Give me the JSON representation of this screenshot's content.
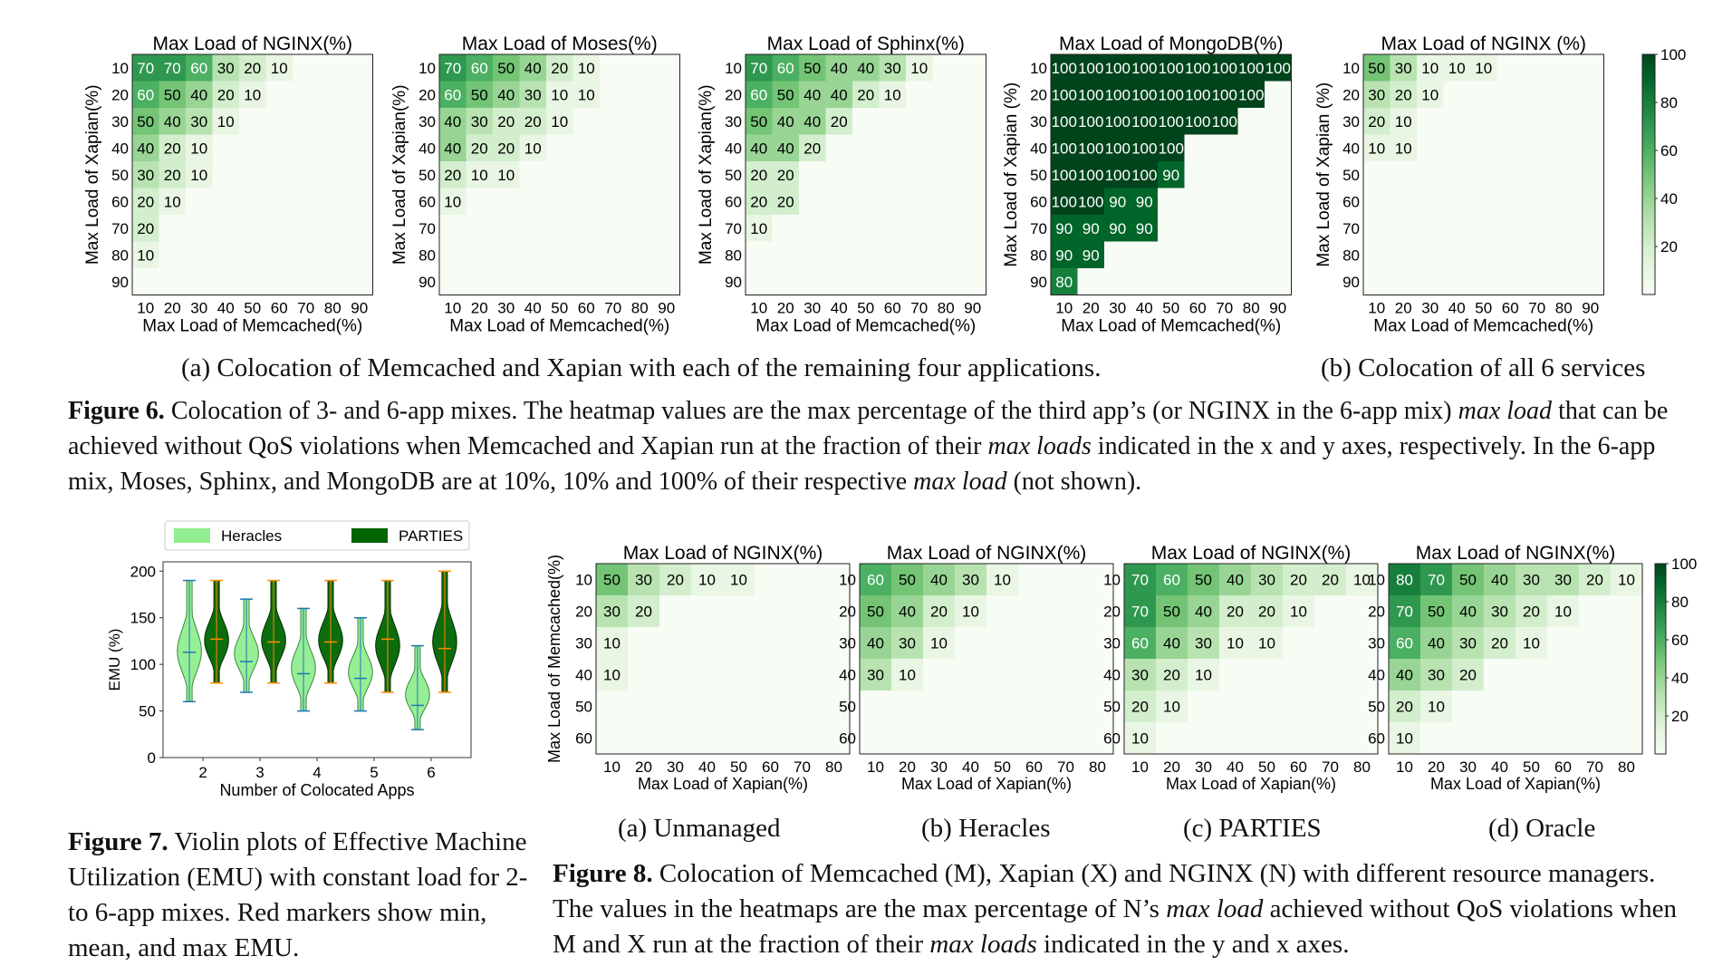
{
  "figure6": {
    "label": "Figure 6.",
    "caption": [
      {
        "t": " Colocation of 3- and 6-app mixes. The heatmap values are the max percentage of the third app’s (or NGINX in the 6-app mix) ",
        "i": false
      },
      {
        "t": "max load",
        "i": true
      },
      {
        "t": " that can be achieved without QoS violations when Memcached and Xapian run at the fraction of their ",
        "i": false
      },
      {
        "t": "max loads",
        "i": true
      },
      {
        "t": " indicated in the x and y axes, respectively. In the 6-app mix, Moses, Sphinx, and MongoDB are at 10%, 10% and 100% of their respective ",
        "i": false
      },
      {
        "t": "max load",
        "i": true
      },
      {
        "t": " (not shown).",
        "i": false
      }
    ],
    "subcaption_a": "(a) Colocation of Memcached and Xapian with each of the remaining four applications.",
    "subcaption_b": "(b) Colocation of all 6 services"
  },
  "figure7": {
    "label": "Figure 7.",
    "caption": [
      {
        "t": " Violin plots of Effective Machine Utilization (EMU) with constant load for 2- to 6-app mixes. Red markers show min, mean, and max EMU.",
        "i": false
      }
    ]
  },
  "figure8": {
    "label": "Figure 8.",
    "caption": [
      {
        "t": " Colocation of Memcached (M), Xapian (X) and NGINX (N) with different resource managers. The values in the heatmaps are the max percentage of N’s ",
        "i": false
      },
      {
        "t": "max load",
        "i": true
      },
      {
        "t": " achieved without QoS violations when M and X run at the fraction of their ",
        "i": false
      },
      {
        "t": "max loads",
        "i": true
      },
      {
        "t": " indicated in the y and x axes.",
        "i": false
      }
    ],
    "subcaptions": [
      "(a) Unmanaged",
      "(b) Heracles",
      "(c) PARTIES",
      "(d) Oracle"
    ]
  },
  "colors": {
    "heat_low": "#f2faef",
    "heat_high": "#00441b",
    "heracles": "#90ee90",
    "parties": "#006400",
    "median_orange": "#ff8c00",
    "mean_blue": "#1f77b4"
  },
  "chart_data": [
    {
      "type": "heatmap",
      "title": "Max Load of NGINX(%)",
      "xlabel": "Max Load of Memcached(%)",
      "ylabel": "Max Load of Xapian(%)",
      "x": [
        "10",
        "20",
        "30",
        "40",
        "50",
        "60",
        "70",
        "80",
        "90"
      ],
      "y": [
        "10",
        "20",
        "30",
        "40",
        "50",
        "60",
        "70",
        "80",
        "90"
      ],
      "values": [
        [
          70,
          70,
          60,
          30,
          20,
          10,
          null,
          null,
          null
        ],
        [
          60,
          50,
          40,
          20,
          10,
          null,
          null,
          null,
          null
        ],
        [
          50,
          40,
          30,
          10,
          null,
          null,
          null,
          null,
          null
        ],
        [
          40,
          20,
          10,
          null,
          null,
          null,
          null,
          null,
          null
        ],
        [
          30,
          20,
          10,
          null,
          null,
          null,
          null,
          null,
          null
        ],
        [
          20,
          10,
          null,
          null,
          null,
          null,
          null,
          null,
          null
        ],
        [
          20,
          null,
          null,
          null,
          null,
          null,
          null,
          null,
          null
        ],
        [
          10,
          null,
          null,
          null,
          null,
          null,
          null,
          null,
          null
        ],
        [
          null,
          null,
          null,
          null,
          null,
          null,
          null,
          null,
          null
        ]
      ],
      "vmin": 0,
      "vmax": 100
    },
    {
      "type": "heatmap",
      "title": "Max Load of Moses(%)",
      "xlabel": "Max Load of Memcached(%)",
      "ylabel": "Max Load of Xapian(%)",
      "x": [
        "10",
        "20",
        "30",
        "40",
        "50",
        "60",
        "70",
        "80",
        "90"
      ],
      "y": [
        "10",
        "20",
        "30",
        "40",
        "50",
        "60",
        "70",
        "80",
        "90"
      ],
      "values": [
        [
          70,
          60,
          50,
          40,
          20,
          10,
          null,
          null,
          null
        ],
        [
          60,
          50,
          40,
          30,
          10,
          10,
          null,
          null,
          null
        ],
        [
          40,
          30,
          20,
          20,
          10,
          null,
          null,
          null,
          null
        ],
        [
          40,
          20,
          20,
          10,
          null,
          null,
          null,
          null,
          null
        ],
        [
          20,
          10,
          10,
          null,
          null,
          null,
          null,
          null,
          null
        ],
        [
          10,
          null,
          null,
          null,
          null,
          null,
          null,
          null,
          null
        ],
        [
          null,
          null,
          null,
          null,
          null,
          null,
          null,
          null,
          null
        ],
        [
          null,
          null,
          null,
          null,
          null,
          null,
          null,
          null,
          null
        ],
        [
          null,
          null,
          null,
          null,
          null,
          null,
          null,
          null,
          null
        ]
      ],
      "vmin": 0,
      "vmax": 100
    },
    {
      "type": "heatmap",
      "title": "Max Load of Sphinx(%)",
      "xlabel": "Max Load of Memcached(%)",
      "ylabel": "Max Load of Xapian(%)",
      "x": [
        "10",
        "20",
        "30",
        "40",
        "50",
        "60",
        "70",
        "80",
        "90"
      ],
      "y": [
        "10",
        "20",
        "30",
        "40",
        "50",
        "60",
        "70",
        "80",
        "90"
      ],
      "values": [
        [
          70,
          60,
          50,
          40,
          40,
          30,
          10,
          null,
          null
        ],
        [
          60,
          50,
          40,
          40,
          20,
          10,
          null,
          null,
          null
        ],
        [
          50,
          40,
          40,
          20,
          null,
          null,
          null,
          null,
          null
        ],
        [
          40,
          40,
          20,
          null,
          null,
          null,
          null,
          null,
          null
        ],
        [
          20,
          20,
          null,
          null,
          null,
          null,
          null,
          null,
          null
        ],
        [
          20,
          20,
          null,
          null,
          null,
          null,
          null,
          null,
          null
        ],
        [
          10,
          null,
          null,
          null,
          null,
          null,
          null,
          null,
          null
        ],
        [
          null,
          null,
          null,
          null,
          null,
          null,
          null,
          null,
          null
        ],
        [
          null,
          null,
          null,
          null,
          null,
          null,
          null,
          null,
          null
        ]
      ],
      "vmin": 0,
      "vmax": 100
    },
    {
      "type": "heatmap",
      "title": "Max Load of MongoDB(%)",
      "xlabel": "Max Load of Memcached(%)",
      "ylabel": "Max Load of Xapian (%)",
      "x": [
        "10",
        "20",
        "30",
        "40",
        "50",
        "60",
        "70",
        "80",
        "90"
      ],
      "y": [
        "10",
        "20",
        "30",
        "40",
        "50",
        "60",
        "70",
        "80",
        "90"
      ],
      "values": [
        [
          100,
          100,
          100,
          100,
          100,
          100,
          100,
          100,
          100
        ],
        [
          100,
          100,
          100,
          100,
          100,
          100,
          100,
          100,
          null
        ],
        [
          100,
          100,
          100,
          100,
          100,
          100,
          100,
          null,
          null
        ],
        [
          100,
          100,
          100,
          100,
          100,
          null,
          null,
          null,
          null
        ],
        [
          100,
          100,
          100,
          100,
          90,
          null,
          null,
          null,
          null
        ],
        [
          100,
          100,
          90,
          90,
          null,
          null,
          null,
          null,
          null
        ],
        [
          90,
          90,
          90,
          90,
          null,
          null,
          null,
          null,
          null
        ],
        [
          90,
          90,
          null,
          null,
          null,
          null,
          null,
          null,
          null
        ],
        [
          80,
          null,
          null,
          null,
          null,
          null,
          null,
          null,
          null
        ]
      ],
      "vmin": 0,
      "vmax": 100
    },
    {
      "type": "heatmap",
      "title": "Max Load of NGINX (%)",
      "xlabel": "Max Load of Memcached(%)",
      "ylabel": "Max Load of Xapian (%)",
      "x": [
        "10",
        "20",
        "30",
        "40",
        "50",
        "60",
        "70",
        "80",
        "90"
      ],
      "y": [
        "10",
        "20",
        "30",
        "40",
        "50",
        "60",
        "70",
        "80",
        "90"
      ],
      "values": [
        [
          50,
          30,
          10,
          10,
          10,
          null,
          null,
          null,
          null
        ],
        [
          30,
          20,
          10,
          null,
          null,
          null,
          null,
          null,
          null
        ],
        [
          20,
          10,
          null,
          null,
          null,
          null,
          null,
          null,
          null
        ],
        [
          10,
          10,
          null,
          null,
          null,
          null,
          null,
          null,
          null
        ],
        [
          null,
          null,
          null,
          null,
          null,
          null,
          null,
          null,
          null
        ],
        [
          null,
          null,
          null,
          null,
          null,
          null,
          null,
          null,
          null
        ],
        [
          null,
          null,
          null,
          null,
          null,
          null,
          null,
          null,
          null
        ],
        [
          null,
          null,
          null,
          null,
          null,
          null,
          null,
          null,
          null
        ],
        [
          null,
          null,
          null,
          null,
          null,
          null,
          null,
          null,
          null
        ]
      ],
      "vmin": 0,
      "vmax": 100,
      "colorbar_ticks": [
        20,
        40,
        60,
        80,
        100
      ]
    },
    {
      "type": "violin",
      "xlabel": "Number of Colocated Apps",
      "ylabel": "EMU (%)",
      "categories": [
        "2",
        "3",
        "4",
        "5",
        "6"
      ],
      "ylim": [
        0,
        210
      ],
      "yticks": [
        0,
        50,
        100,
        150,
        200
      ],
      "legend": [
        "Heracles",
        "PARTIES"
      ],
      "legend_position": "top",
      "series": [
        {
          "name": "Heracles",
          "min": [
            60,
            70,
            50,
            50,
            30
          ],
          "mean": [
            113,
            103,
            90,
            85,
            56
          ],
          "max": [
            190,
            170,
            160,
            150,
            120
          ]
        },
        {
          "name": "PARTIES",
          "min": [
            80,
            80,
            80,
            70,
            70
          ],
          "mean": [
            127,
            124,
            124,
            127,
            117
          ],
          "max": [
            190,
            190,
            190,
            190,
            200
          ]
        }
      ]
    },
    {
      "type": "heatmap",
      "title": "Max Load of NGINX(%)",
      "xlabel": "Max Load of Xapian(%)",
      "ylabel": "Max Load of Memcached(%)",
      "x": [
        "10",
        "20",
        "30",
        "40",
        "50",
        "60",
        "70",
        "80"
      ],
      "y": [
        "10",
        "20",
        "30",
        "40",
        "50",
        "60"
      ],
      "values": [
        [
          50,
          30,
          20,
          10,
          10,
          null,
          null,
          null
        ],
        [
          30,
          20,
          null,
          null,
          null,
          null,
          null,
          null
        ],
        [
          10,
          null,
          null,
          null,
          null,
          null,
          null,
          null
        ],
        [
          10,
          null,
          null,
          null,
          null,
          null,
          null,
          null
        ],
        [
          null,
          null,
          null,
          null,
          null,
          null,
          null,
          null
        ],
        [
          null,
          null,
          null,
          null,
          null,
          null,
          null,
          null
        ]
      ],
      "vmin": 0,
      "vmax": 100
    },
    {
      "type": "heatmap",
      "title": "Max Load of NGINX(%)",
      "xlabel": "Max Load of Xapian(%)",
      "ylabel": "",
      "x": [
        "10",
        "20",
        "30",
        "40",
        "50",
        "60",
        "70",
        "80"
      ],
      "y": [
        "10",
        "20",
        "30",
        "40",
        "50",
        "60"
      ],
      "values": [
        [
          60,
          50,
          40,
          30,
          10,
          null,
          null,
          null
        ],
        [
          50,
          40,
          20,
          10,
          null,
          null,
          null,
          null
        ],
        [
          40,
          30,
          10,
          null,
          null,
          null,
          null,
          null
        ],
        [
          30,
          10,
          null,
          null,
          null,
          null,
          null,
          null
        ],
        [
          null,
          null,
          null,
          null,
          null,
          null,
          null,
          null
        ],
        [
          null,
          null,
          null,
          null,
          null,
          null,
          null,
          null
        ]
      ],
      "vmin": 0,
      "vmax": 100
    },
    {
      "type": "heatmap",
      "title": "Max Load of NGINX(%)",
      "xlabel": "Max Load of Xapian(%)",
      "ylabel": "",
      "x": [
        "10",
        "20",
        "30",
        "40",
        "50",
        "60",
        "70",
        "80"
      ],
      "y": [
        "10",
        "20",
        "30",
        "40",
        "50",
        "60"
      ],
      "values": [
        [
          70,
          60,
          50,
          40,
          30,
          20,
          20,
          10
        ],
        [
          70,
          50,
          40,
          20,
          20,
          10,
          null,
          null
        ],
        [
          60,
          40,
          30,
          10,
          10,
          null,
          null,
          null
        ],
        [
          30,
          20,
          10,
          null,
          null,
          null,
          null,
          null
        ],
        [
          20,
          10,
          null,
          null,
          null,
          null,
          null,
          null
        ],
        [
          10,
          null,
          null,
          null,
          null,
          null,
          null,
          null
        ]
      ],
      "vmin": 0,
      "vmax": 100
    },
    {
      "type": "heatmap",
      "title": "Max Load of NGINX(%)",
      "xlabel": "Max Load of Xapian(%)",
      "ylabel": "",
      "x": [
        "10",
        "20",
        "30",
        "40",
        "50",
        "60",
        "70",
        "80"
      ],
      "y": [
        "10",
        "20",
        "30",
        "40",
        "50",
        "60"
      ],
      "values": [
        [
          80,
          70,
          50,
          40,
          30,
          30,
          20,
          10
        ],
        [
          70,
          50,
          40,
          30,
          20,
          10,
          null,
          null
        ],
        [
          60,
          40,
          30,
          20,
          10,
          null,
          null,
          null
        ],
        [
          40,
          30,
          20,
          null,
          null,
          null,
          null,
          null
        ],
        [
          20,
          10,
          null,
          null,
          null,
          null,
          null,
          null
        ],
        [
          10,
          null,
          null,
          null,
          null,
          null,
          null,
          null
        ]
      ],
      "vmin": 0,
      "vmax": 100,
      "colorbar_ticks": [
        20,
        40,
        60,
        80,
        100
      ]
    }
  ]
}
